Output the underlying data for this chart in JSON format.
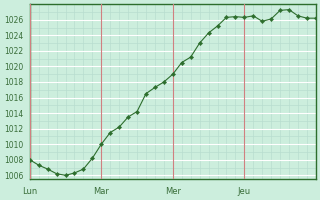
{
  "background_color": "#cceedd",
  "plot_bg_color": "#cceedd",
  "line_color": "#2d6e2d",
  "marker_color": "#2d6e2d",
  "grid_color_major": "#ffffff",
  "grid_color_minor": "#b8ddd0",
  "vline_color": "#d08080",
  "spine_color": "#2d6e2d",
  "ylim": [
    1005.5,
    1028.0
  ],
  "yticks": [
    1006,
    1008,
    1010,
    1012,
    1014,
    1016,
    1018,
    1020,
    1022,
    1024,
    1026
  ],
  "tick_label_color": "#3a6e3a",
  "day_labels": [
    "Lun",
    "Mar",
    "Mer",
    "Jeu"
  ],
  "day_positions": [
    0,
    24,
    48,
    72
  ],
  "x_values": [
    0,
    3,
    6,
    9,
    12,
    15,
    18,
    21,
    24,
    27,
    30,
    33,
    36,
    39,
    42,
    45,
    48,
    51,
    54,
    57,
    60,
    63,
    66,
    69,
    72,
    75,
    78,
    81,
    84,
    87,
    90,
    93,
    96
  ],
  "y_values": [
    1008.0,
    1007.3,
    1006.8,
    1006.2,
    1006.0,
    1006.3,
    1006.8,
    1008.2,
    1010.0,
    1011.5,
    1012.2,
    1013.5,
    1014.2,
    1016.5,
    1017.3,
    1018.0,
    1019.0,
    1020.5,
    1021.2,
    1023.0,
    1024.3,
    1025.2,
    1026.3,
    1026.4,
    1026.3,
    1026.5,
    1025.8,
    1026.1,
    1027.2,
    1027.3,
    1026.5,
    1026.2,
    1026.2
  ],
  "xlim": [
    0,
    96
  ],
  "figsize": [
    3.2,
    2.0
  ],
  "dpi": 100
}
